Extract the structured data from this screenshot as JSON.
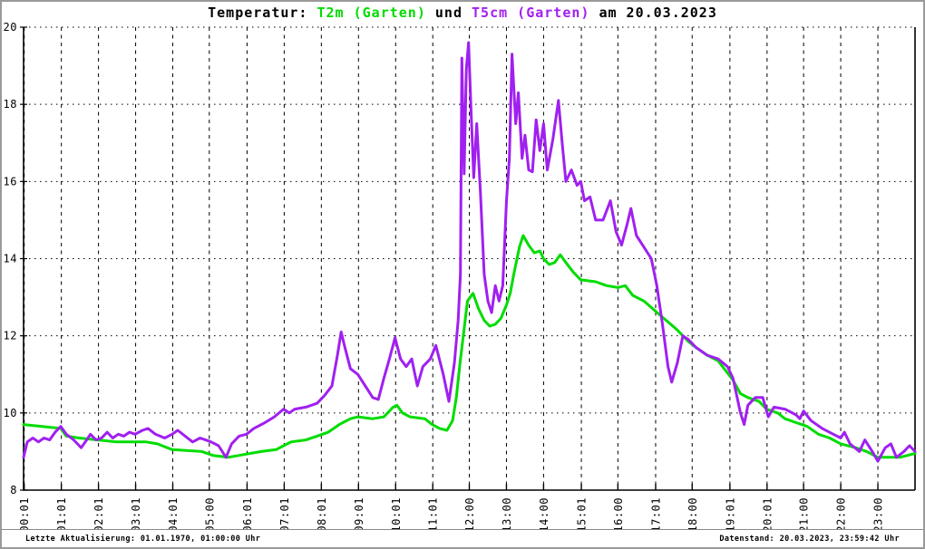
{
  "title": {
    "prefix": "Temperatur: ",
    "series1_label": "T2m (Garten)",
    "connector": " und ",
    "series2_label": "T5cm (Garten)",
    "suffix": " am 20.03.2023"
  },
  "colors": {
    "t2m_green": "#00DC00",
    "t5cm_purple": "#A020F0",
    "axis": "#000000",
    "window_border": "#9a9a9a"
  },
  "statusbar": {
    "left": "Letzte Aktualisierung: 01.01.1970, 01:00:00 Uhr",
    "right": "Datenstand: 20.03.2023, 23:59:42 Uhr"
  },
  "chart_data": {
    "type": "line",
    "title": "Temperatur: T2m (Garten) und T5cm (Garten) am 20.03.2023",
    "xlabel": "",
    "ylabel": "",
    "ylim": [
      8,
      20
    ],
    "y_ticks": [
      8,
      10,
      12,
      14,
      16,
      18,
      20
    ],
    "x_ticks": [
      "00:01",
      "01:01",
      "02:01",
      "03:01",
      "04:01",
      "05:00",
      "06:01",
      "07:01",
      "08:01",
      "09:01",
      "10:01",
      "11:01",
      "12:00",
      "13:00",
      "14:00",
      "15:01",
      "16:00",
      "17:01",
      "18:00",
      "19:01",
      "20:01",
      "21:00",
      "22:00",
      "23:00"
    ],
    "x_range_hours": [
      0,
      24
    ],
    "grid": "dotted horizontal, dashed vertical",
    "legend_position": "in title",
    "series": [
      {
        "name": "T2m (Garten)",
        "color": "#00DC00",
        "data": [
          [
            0.0,
            9.7
          ],
          [
            0.5,
            9.65
          ],
          [
            1.0,
            9.6
          ],
          [
            1.15,
            9.4
          ],
          [
            1.5,
            9.35
          ],
          [
            2.0,
            9.3
          ],
          [
            2.5,
            9.25
          ],
          [
            3.3,
            9.25
          ],
          [
            3.6,
            9.2
          ],
          [
            4.0,
            9.05
          ],
          [
            4.8,
            9.0
          ],
          [
            5.1,
            8.9
          ],
          [
            5.5,
            8.85
          ],
          [
            5.8,
            8.9
          ],
          [
            6.1,
            8.95
          ],
          [
            6.4,
            9.0
          ],
          [
            6.8,
            9.05
          ],
          [
            7.0,
            9.15
          ],
          [
            7.2,
            9.25
          ],
          [
            7.6,
            9.3
          ],
          [
            7.9,
            9.4
          ],
          [
            8.2,
            9.5
          ],
          [
            8.5,
            9.7
          ],
          [
            8.8,
            9.85
          ],
          [
            9.0,
            9.9
          ],
          [
            9.4,
            9.85
          ],
          [
            9.7,
            9.9
          ],
          [
            9.95,
            10.15
          ],
          [
            10.05,
            10.2
          ],
          [
            10.2,
            10.0
          ],
          [
            10.4,
            9.9
          ],
          [
            10.8,
            9.85
          ],
          [
            11.0,
            9.7
          ],
          [
            11.2,
            9.6
          ],
          [
            11.4,
            9.55
          ],
          [
            11.55,
            9.8
          ],
          [
            11.65,
            10.4
          ],
          [
            11.75,
            11.3
          ],
          [
            11.85,
            12.1
          ],
          [
            11.95,
            12.9
          ],
          [
            12.1,
            13.1
          ],
          [
            12.25,
            12.7
          ],
          [
            12.4,
            12.4
          ],
          [
            12.55,
            12.25
          ],
          [
            12.7,
            12.3
          ],
          [
            12.85,
            12.45
          ],
          [
            13.0,
            12.8
          ],
          [
            13.1,
            13.1
          ],
          [
            13.2,
            13.6
          ],
          [
            13.35,
            14.3
          ],
          [
            13.45,
            14.6
          ],
          [
            13.6,
            14.35
          ],
          [
            13.75,
            14.15
          ],
          [
            13.9,
            14.2
          ],
          [
            14.0,
            14.0
          ],
          [
            14.15,
            13.85
          ],
          [
            14.3,
            13.9
          ],
          [
            14.45,
            14.1
          ],
          [
            14.6,
            13.9
          ],
          [
            14.8,
            13.65
          ],
          [
            15.0,
            13.45
          ],
          [
            15.4,
            13.4
          ],
          [
            15.7,
            13.3
          ],
          [
            16.0,
            13.25
          ],
          [
            16.2,
            13.3
          ],
          [
            16.4,
            13.05
          ],
          [
            16.7,
            12.9
          ],
          [
            17.0,
            12.65
          ],
          [
            17.3,
            12.4
          ],
          [
            17.6,
            12.15
          ],
          [
            17.9,
            11.85
          ],
          [
            18.1,
            11.7
          ],
          [
            18.4,
            11.5
          ],
          [
            18.7,
            11.35
          ],
          [
            18.9,
            11.1
          ],
          [
            19.1,
            10.85
          ],
          [
            19.3,
            10.5
          ],
          [
            19.5,
            10.4
          ],
          [
            19.8,
            10.3
          ],
          [
            20.0,
            10.1
          ],
          [
            20.3,
            10.0
          ],
          [
            20.5,
            9.85
          ],
          [
            20.8,
            9.75
          ],
          [
            21.1,
            9.65
          ],
          [
            21.4,
            9.45
          ],
          [
            21.7,
            9.35
          ],
          [
            22.0,
            9.2
          ],
          [
            22.4,
            9.1
          ],
          [
            22.7,
            9.0
          ],
          [
            23.0,
            8.85
          ],
          [
            23.6,
            8.85
          ],
          [
            24.0,
            8.95
          ]
        ]
      },
      {
        "name": "T5cm (Garten)",
        "color": "#A020F0",
        "data": [
          [
            0.0,
            8.85
          ],
          [
            0.1,
            9.25
          ],
          [
            0.25,
            9.35
          ],
          [
            0.4,
            9.25
          ],
          [
            0.55,
            9.35
          ],
          [
            0.7,
            9.3
          ],
          [
            0.85,
            9.5
          ],
          [
            1.0,
            9.65
          ],
          [
            1.15,
            9.45
          ],
          [
            1.35,
            9.3
          ],
          [
            1.55,
            9.1
          ],
          [
            1.7,
            9.3
          ],
          [
            1.8,
            9.45
          ],
          [
            1.95,
            9.3
          ],
          [
            2.1,
            9.35
          ],
          [
            2.25,
            9.5
          ],
          [
            2.4,
            9.35
          ],
          [
            2.55,
            9.45
          ],
          [
            2.7,
            9.4
          ],
          [
            2.85,
            9.5
          ],
          [
            3.0,
            9.45
          ],
          [
            3.2,
            9.55
          ],
          [
            3.35,
            9.6
          ],
          [
            3.55,
            9.45
          ],
          [
            3.8,
            9.35
          ],
          [
            4.0,
            9.45
          ],
          [
            4.15,
            9.55
          ],
          [
            4.35,
            9.4
          ],
          [
            4.55,
            9.25
          ],
          [
            4.75,
            9.35
          ],
          [
            4.9,
            9.3
          ],
          [
            5.05,
            9.25
          ],
          [
            5.25,
            9.15
          ],
          [
            5.45,
            8.85
          ],
          [
            5.6,
            9.2
          ],
          [
            5.8,
            9.4
          ],
          [
            6.0,
            9.45
          ],
          [
            6.2,
            9.6
          ],
          [
            6.5,
            9.75
          ],
          [
            6.75,
            9.9
          ],
          [
            7.0,
            10.1
          ],
          [
            7.15,
            10.0
          ],
          [
            7.3,
            10.1
          ],
          [
            7.6,
            10.15
          ],
          [
            7.9,
            10.25
          ],
          [
            8.1,
            10.45
          ],
          [
            8.3,
            10.7
          ],
          [
            8.45,
            11.5
          ],
          [
            8.55,
            12.1
          ],
          [
            8.65,
            11.7
          ],
          [
            8.8,
            11.15
          ],
          [
            9.0,
            11.0
          ],
          [
            9.2,
            10.7
          ],
          [
            9.4,
            10.4
          ],
          [
            9.55,
            10.35
          ],
          [
            9.7,
            10.9
          ],
          [
            9.85,
            11.4
          ],
          [
            10.0,
            11.95
          ],
          [
            10.15,
            11.4
          ],
          [
            10.3,
            11.2
          ],
          [
            10.45,
            11.4
          ],
          [
            10.6,
            10.7
          ],
          [
            10.75,
            11.2
          ],
          [
            10.95,
            11.4
          ],
          [
            11.1,
            11.75
          ],
          [
            11.3,
            11.0
          ],
          [
            11.45,
            10.3
          ],
          [
            11.6,
            11.3
          ],
          [
            11.7,
            12.4
          ],
          [
            11.76,
            13.6
          ],
          [
            11.8,
            19.2
          ],
          [
            11.86,
            16.2
          ],
          [
            11.92,
            18.9
          ],
          [
            11.98,
            19.6
          ],
          [
            12.05,
            17.8
          ],
          [
            12.12,
            16.1
          ],
          [
            12.2,
            17.5
          ],
          [
            12.3,
            15.7
          ],
          [
            12.4,
            13.6
          ],
          [
            12.5,
            12.9
          ],
          [
            12.6,
            12.6
          ],
          [
            12.7,
            13.3
          ],
          [
            12.8,
            12.9
          ],
          [
            12.9,
            13.3
          ],
          [
            13.0,
            15.5
          ],
          [
            13.08,
            16.6
          ],
          [
            13.15,
            19.3
          ],
          [
            13.25,
            17.5
          ],
          [
            13.32,
            18.3
          ],
          [
            13.42,
            16.6
          ],
          [
            13.5,
            17.2
          ],
          [
            13.6,
            16.3
          ],
          [
            13.7,
            16.25
          ],
          [
            13.8,
            17.6
          ],
          [
            13.9,
            16.8
          ],
          [
            14.0,
            17.5
          ],
          [
            14.1,
            16.3
          ],
          [
            14.25,
            17.1
          ],
          [
            14.4,
            18.1
          ],
          [
            14.5,
            17.0
          ],
          [
            14.6,
            16.0
          ],
          [
            14.75,
            16.3
          ],
          [
            14.9,
            15.9
          ],
          [
            15.0,
            16.0
          ],
          [
            15.1,
            15.5
          ],
          [
            15.25,
            15.6
          ],
          [
            15.4,
            15.0
          ],
          [
            15.6,
            15.0
          ],
          [
            15.8,
            15.5
          ],
          [
            15.95,
            14.7
          ],
          [
            16.1,
            14.35
          ],
          [
            16.25,
            14.9
          ],
          [
            16.35,
            15.3
          ],
          [
            16.5,
            14.6
          ],
          [
            16.7,
            14.3
          ],
          [
            16.9,
            14.0
          ],
          [
            17.05,
            13.3
          ],
          [
            17.2,
            12.3
          ],
          [
            17.35,
            11.2
          ],
          [
            17.45,
            10.8
          ],
          [
            17.6,
            11.3
          ],
          [
            17.75,
            12.0
          ],
          [
            17.9,
            11.9
          ],
          [
            18.1,
            11.7
          ],
          [
            18.4,
            11.5
          ],
          [
            18.7,
            11.4
          ],
          [
            18.95,
            11.2
          ],
          [
            19.1,
            10.9
          ],
          [
            19.3,
            10.0
          ],
          [
            19.4,
            9.7
          ],
          [
            19.5,
            10.2
          ],
          [
            19.7,
            10.4
          ],
          [
            19.9,
            10.4
          ],
          [
            20.05,
            9.9
          ],
          [
            20.2,
            10.15
          ],
          [
            20.5,
            10.1
          ],
          [
            20.8,
            9.95
          ],
          [
            20.9,
            9.85
          ],
          [
            21.0,
            10.05
          ],
          [
            21.2,
            9.8
          ],
          [
            21.5,
            9.6
          ],
          [
            21.8,
            9.45
          ],
          [
            22.0,
            9.35
          ],
          [
            22.1,
            9.5
          ],
          [
            22.25,
            9.2
          ],
          [
            22.5,
            9.0
          ],
          [
            22.65,
            9.3
          ],
          [
            22.85,
            9.0
          ],
          [
            23.0,
            8.75
          ],
          [
            23.2,
            9.1
          ],
          [
            23.35,
            9.2
          ],
          [
            23.5,
            8.85
          ],
          [
            23.7,
            9.0
          ],
          [
            23.85,
            9.15
          ],
          [
            24.0,
            9.0
          ]
        ]
      }
    ]
  }
}
